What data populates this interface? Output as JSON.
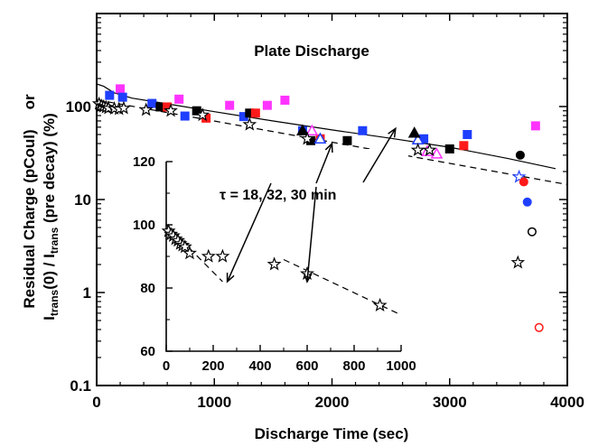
{
  "chart_data": [
    {
      "type": "scatter",
      "title": "Plate Discharge",
      "xlabel": "Discharge Time (sec)",
      "ylabel_parts": {
        "line1_a": "Residual Charge (pCoul)",
        "line1_b": "or",
        "line2_i1": "I",
        "line2_sub1": "trans",
        "line2_mid": "(0) / I",
        "line2_sub2": "trans",
        "line2_end": " (pre decay) (%)"
      },
      "xscale": "linear",
      "yscale": "log",
      "xlim": [
        0,
        4000
      ],
      "ylim": [
        0.1,
        1000
      ],
      "x_ticks": [
        0,
        1000,
        2000,
        3000,
        4000
      ],
      "x_tick_labels": [
        "0",
        "1000",
        "2000",
        "3000",
        "4000"
      ],
      "y_ticks": [
        0.1,
        1,
        10,
        100
      ],
      "y_tick_labels": [
        "0.1",
        "1",
        "10",
        "100"
      ],
      "grid": false,
      "series": [
        {
          "marker": "square",
          "color": "#ff33ff",
          "fill": true,
          "points": [
            [
              200,
              155
            ],
            [
              700,
              120
            ],
            [
              1130,
              103
            ],
            [
              1450,
              103
            ],
            [
              1600,
              117
            ],
            [
              3730,
              62
            ]
          ]
        },
        {
          "marker": "square",
          "color": "#1f3fff",
          "fill": true,
          "points": [
            [
              110,
              132
            ],
            [
              220,
              126
            ],
            [
              470,
              108
            ],
            [
              750,
              79
            ],
            [
              1250,
              78
            ],
            [
              1750,
              55
            ],
            [
              2260,
              55
            ],
            [
              2780,
              45
            ],
            [
              3150,
              50
            ]
          ]
        },
        {
          "marker": "square",
          "color": "#000000",
          "fill": true,
          "points": [
            [
              540,
              99
            ],
            [
              850,
              90
            ],
            [
              1300,
              85
            ],
            [
              1820,
              43
            ],
            [
              2130,
              43
            ],
            [
              3000,
              35
            ]
          ]
        },
        {
          "marker": "square",
          "color": "#ff1a1a",
          "fill": true,
          "points": [
            [
              600,
              99
            ],
            [
              930,
              75
            ],
            [
              1350,
              85
            ],
            [
              1900,
              45
            ],
            [
              3120,
              38
            ]
          ]
        },
        {
          "marker": "triangle",
          "color": "#ff33ff",
          "fill": false,
          "points": [
            [
              1830,
              55
            ],
            [
              2810,
              33
            ],
            [
              2890,
              31
            ]
          ]
        },
        {
          "marker": "triangle",
          "color": "#1f3fff",
          "fill": false,
          "points": [
            [
              1900,
              45
            ],
            [
              2730,
              44
            ]
          ]
        },
        {
          "marker": "triangle",
          "color": "#000000",
          "fill": true,
          "points": [
            [
              1750,
              55
            ],
            [
              2700,
              52
            ]
          ]
        },
        {
          "marker": "star",
          "color": "#1f3fff",
          "fill": false,
          "points": [
            [
              3590,
              17.5
            ]
          ]
        },
        {
          "marker": "star",
          "color": "#000000",
          "fill": false,
          "points": [
            [
              20,
              107
            ],
            [
              40,
              102
            ],
            [
              60,
              100
            ],
            [
              80,
              98
            ],
            [
              100,
              96
            ],
            [
              150,
              95
            ],
            [
              190,
              94
            ],
            [
              230,
              96
            ],
            [
              420,
              92
            ],
            [
              630,
              90
            ],
            [
              900,
              81
            ],
            [
              1300,
              64
            ],
            [
              1790,
              45
            ],
            [
              2730,
              34
            ],
            [
              2830,
              34
            ],
            [
              3580,
              2.1
            ]
          ]
        },
        {
          "marker": "circle",
          "color": "#000000",
          "fill": true,
          "points": [
            [
              3600,
              30
            ]
          ]
        },
        {
          "marker": "circle",
          "color": "#ff1a1a",
          "fill": true,
          "points": [
            [
              3630,
              15.5
            ]
          ]
        },
        {
          "marker": "circle",
          "color": "#1f3fff",
          "fill": true,
          "points": [
            [
              3660,
              9.4
            ]
          ]
        },
        {
          "marker": "circle",
          "color": "#000000",
          "fill": false,
          "points": [
            [
              3700,
              4.5
            ]
          ]
        },
        {
          "marker": "circle",
          "color": "#ff1a1a",
          "fill": false,
          "points": [
            [
              3760,
              0.42
            ]
          ]
        }
      ],
      "lines": [
        {
          "style": "solid",
          "points": [
            [
              0,
              175
            ],
            [
              60,
              165
            ],
            [
              150,
              140
            ],
            [
              300,
              123
            ],
            [
              600,
              107
            ],
            [
              1000,
              88
            ],
            [
              1500,
              70
            ],
            [
              2000,
              56
            ],
            [
              2500,
              45.5
            ],
            [
              3000,
              36.5
            ],
            [
              3500,
              27.5
            ],
            [
              3900,
              21.5
            ]
          ]
        },
        {
          "style": "dashed",
          "points": [
            [
              0,
              118
            ],
            [
              4000,
              14.5
            ]
          ]
        }
      ],
      "annotation": {
        "text": "τ = 18, 32,     30 min",
        "arrow_targets": [
          [
            2000,
            40
          ],
          [
            2540,
            58
          ]
        ]
      }
    },
    {
      "type": "scatter",
      "xscale": "linear",
      "yscale": "linear",
      "xlim": [
        0,
        1000
      ],
      "ylim": [
        60,
        120
      ],
      "x_ticks": [
        0,
        200,
        400,
        600,
        800,
        1000
      ],
      "x_tick_labels": [
        "0",
        "200",
        "400",
        "600",
        "800",
        "1000"
      ],
      "y_ticks": [
        60,
        80,
        100,
        120
      ],
      "y_tick_labels": [
        "60",
        "80",
        "100",
        "120"
      ],
      "grid": false,
      "series": [
        {
          "marker": "star",
          "color": "#000000",
          "fill": false,
          "points": [
            [
              10,
              98
            ],
            [
              20,
              97
            ],
            [
              30,
              96.5
            ],
            [
              40,
              95.5
            ],
            [
              50,
              95
            ],
            [
              60,
              94
            ],
            [
              70,
              93.5
            ],
            [
              80,
              93
            ],
            [
              100,
              91
            ],
            [
              180,
              90
            ],
            [
              240,
              90
            ],
            [
              460,
              87.5
            ],
            [
              600,
              84.5
            ],
            [
              910,
              74.5
            ]
          ]
        }
      ],
      "lines": [
        {
          "style": "dashed",
          "points": [
            [
              0,
              100
            ],
            [
              240,
              82
            ]
          ]
        },
        {
          "style": "dashed",
          "points": [
            [
              500,
              89
            ],
            [
              1000,
              71.5
            ]
          ]
        }
      ],
      "arrow_targets": [
        [
          260,
          82
        ],
        [
          600,
          82
        ]
      ]
    }
  ]
}
